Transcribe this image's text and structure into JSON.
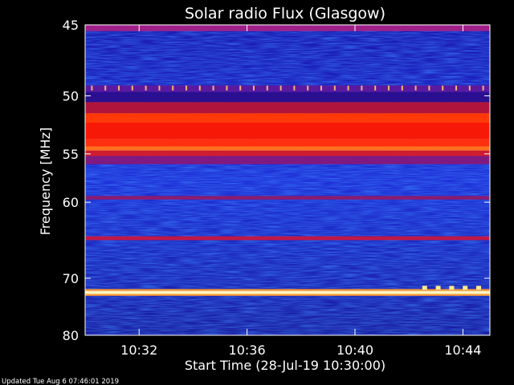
{
  "chart_data": {
    "type": "heatmap",
    "title": "Solar radio Flux (Glasgow)",
    "xlabel": "Start Time (28-Jul-19 10:30:00)",
    "ylabel": "Frequency [MHz]",
    "x_ticks": [
      "10:32",
      "10:36",
      "10:40",
      "10:44"
    ],
    "y_ticks": [
      "45",
      "50",
      "55",
      "60",
      "70",
      "80"
    ],
    "y_scale": "reciprocal",
    "xlim": [
      "10:30:00",
      "10:45:00"
    ],
    "ylim": [
      45,
      80
    ],
    "bands": [
      {
        "freq_from": 45.0,
        "freq_to": 45.4,
        "color": "#a0208a"
      },
      {
        "freq_from": 49.2,
        "freq_to": 49.7,
        "color": "#5a1aa0"
      },
      {
        "freq_from": 49.7,
        "freq_to": 50.5,
        "color": "#2a1090"
      },
      {
        "freq_from": 50.5,
        "freq_to": 51.4,
        "color": "#b0143c"
      },
      {
        "freq_from": 51.4,
        "freq_to": 52.2,
        "color": "#ff3a08"
      },
      {
        "freq_from": 52.2,
        "freq_to": 53.6,
        "color": "#f81808"
      },
      {
        "freq_from": 53.6,
        "freq_to": 54.3,
        "color": "#ff3010"
      },
      {
        "freq_from": 54.3,
        "freq_to": 54.7,
        "color": "#ff7020"
      },
      {
        "freq_from": 54.7,
        "freq_to": 55.2,
        "color": "#d01c30"
      },
      {
        "freq_from": 55.2,
        "freq_to": 56.0,
        "color": "#801a80"
      },
      {
        "freq_from": 59.3,
        "freq_to": 59.7,
        "color": "#8a1c70"
      },
      {
        "freq_from": 64.1,
        "freq_to": 64.6,
        "color": "#c01848"
      },
      {
        "freq_from": 71.7,
        "freq_to": 72.0,
        "color": "#ff9a30"
      },
      {
        "freq_from": 72.0,
        "freq_to": 72.5,
        "color": "#fff6c0"
      },
      {
        "freq_from": 72.5,
        "freq_to": 72.8,
        "color": "#ff9a30"
      }
    ],
    "markers": [
      {
        "freq": 49.4,
        "color": "#ffb070",
        "times": [
          "10:30:15",
          "10:30:45",
          "10:31:15",
          "10:31:45",
          "10:32:15",
          "10:32:45",
          "10:33:15",
          "10:33:45",
          "10:34:15",
          "10:34:45",
          "10:35:15",
          "10:35:45",
          "10:36:15",
          "10:36:45",
          "10:37:15",
          "10:37:45",
          "10:38:15",
          "10:38:45",
          "10:39:15",
          "10:39:45",
          "10:40:15",
          "10:40:45",
          "10:41:15",
          "10:41:45",
          "10:42:15",
          "10:42:45",
          "10:43:15",
          "10:43:45",
          "10:44:15",
          "10:44:45"
        ]
      },
      {
        "freq": 71.5,
        "color": "#ffe890",
        "times": [
          "10:42:35",
          "10:43:05",
          "10:43:35",
          "10:44:05",
          "10:44:35"
        ]
      }
    ]
  },
  "footer": {
    "updated": "Updated Tue Aug  6 07:46:01 2019"
  }
}
